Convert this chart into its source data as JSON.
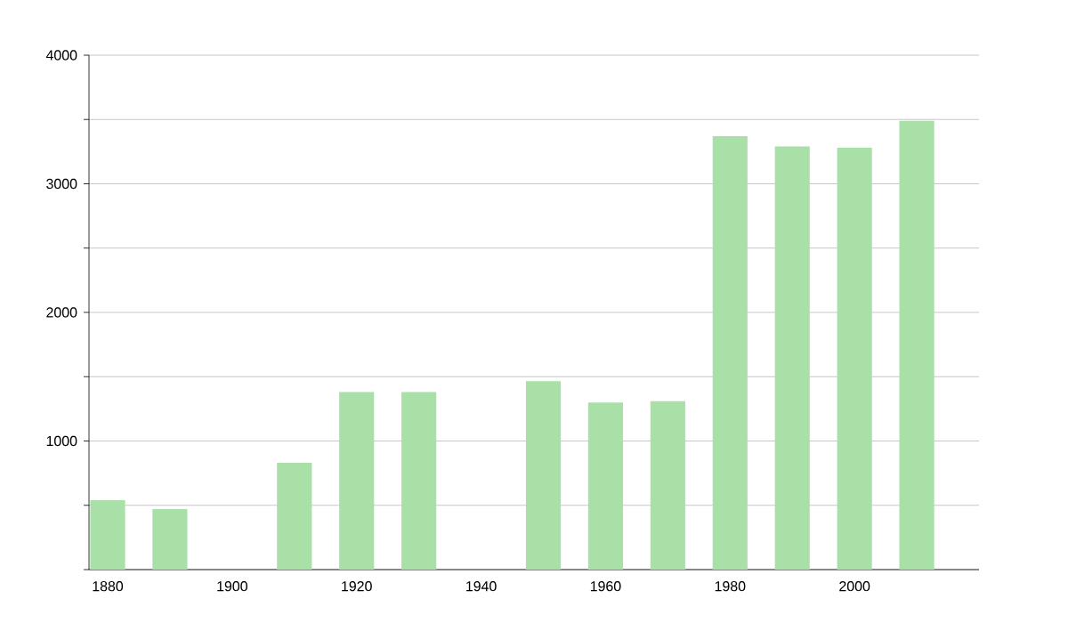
{
  "chart_data": {
    "type": "bar",
    "x": [
      1880,
      1890,
      1910,
      1920,
      1930,
      1950,
      1960,
      1970,
      1980,
      1990,
      2000,
      2010
    ],
    "values": [
      540,
      470,
      830,
      1380,
      1380,
      1465,
      1300,
      1310,
      3370,
      3290,
      3280,
      3490
    ],
    "color": "#a8e0a8",
    "xlim": [
      1877,
      2020
    ],
    "xticks": [
      1880,
      1900,
      1920,
      1940,
      1960,
      1980,
      2000
    ],
    "ylim": [
      0,
      4000
    ],
    "yticks": [
      {
        "value": 0,
        "label": null
      },
      {
        "value": 500,
        "label": null
      },
      1000,
      {
        "value": 1500,
        "label": null
      },
      2000,
      {
        "value": 2500,
        "label": null
      },
      3000,
      {
        "value": 3500,
        "label": null
      },
      4000
    ],
    "grid": "y"
  }
}
